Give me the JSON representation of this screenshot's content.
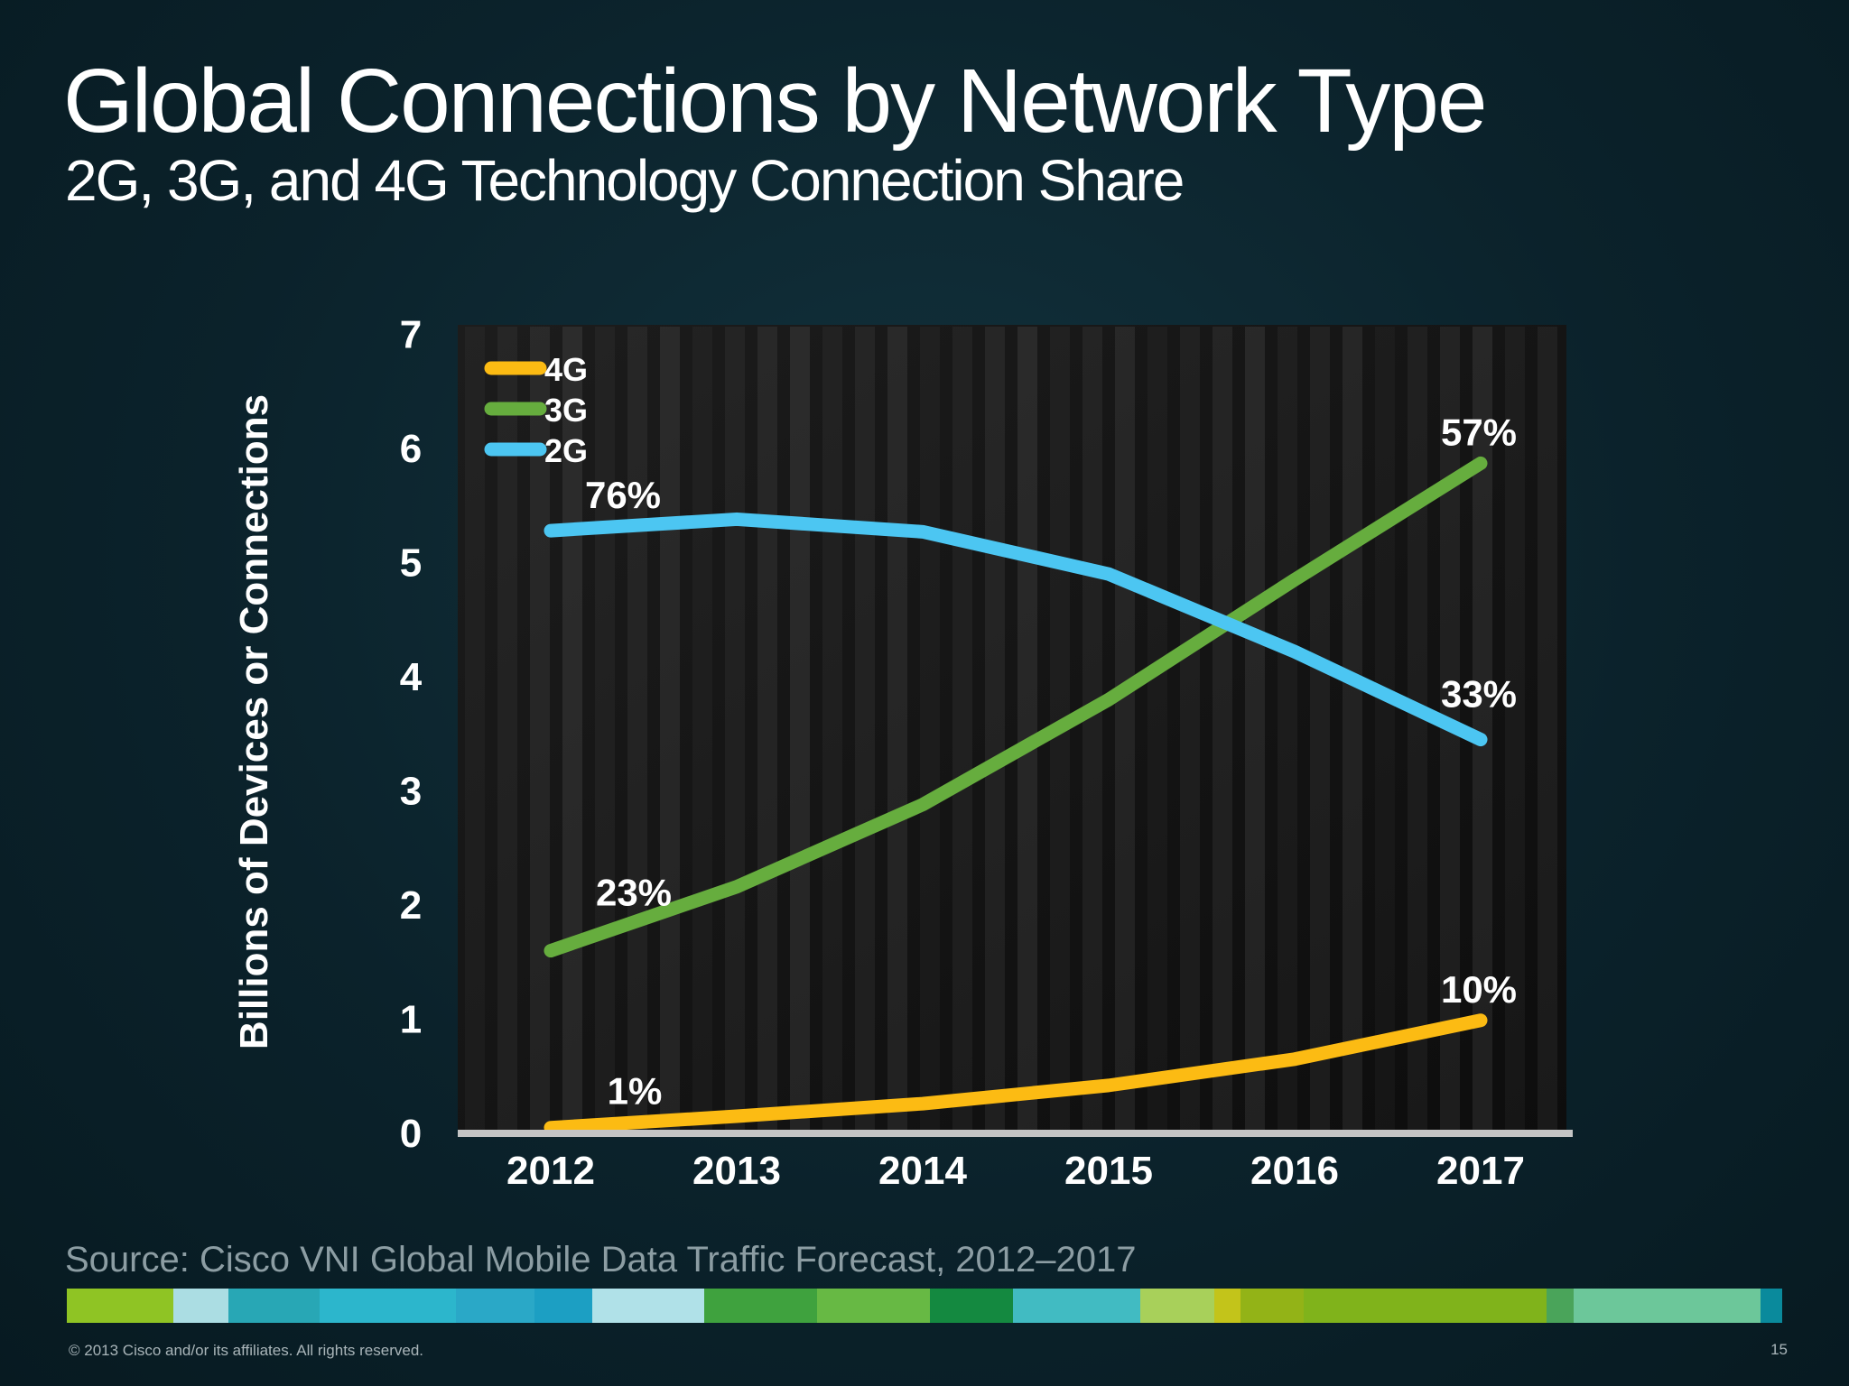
{
  "slide": {
    "title": "Global Connections by Network Type",
    "subtitle": "2G, 3G, and 4G Technology Connection Share",
    "source": "Source: Cisco VNI Global Mobile Data Traffic Forecast, 2012–2017",
    "copyright": "© 2013 Cisco and/or its affiliates. All rights reserved.",
    "page_number": "15"
  },
  "colors": {
    "4G": "#fcbb13",
    "3G": "#66ad3e",
    "2G": "#4cc6f2",
    "plot_background": "#151515",
    "baseline": "#c4c4c4"
  },
  "chart_data": {
    "type": "line",
    "title": "",
    "xlabel": "",
    "ylabel": "Billions of Devices or Connections",
    "x": [
      "2012",
      "2013",
      "2014",
      "2015",
      "2016",
      "2017"
    ],
    "ylim": [
      0,
      7
    ],
    "yticks": [
      "0",
      "1",
      "2",
      "3",
      "4",
      "5",
      "6",
      "7"
    ],
    "grid": false,
    "legend": "top-left",
    "series": [
      {
        "name": "4G",
        "values": [
          0.05,
          0.15,
          0.26,
          0.42,
          0.65,
          0.99
        ],
        "annotations": [
          {
            "index": 0,
            "text": "1%"
          },
          {
            "index": 5,
            "text": "10%"
          }
        ]
      },
      {
        "name": "3G",
        "values": [
          1.6,
          2.16,
          2.88,
          3.8,
          4.85,
          5.87
        ],
        "annotations": [
          {
            "index": 0,
            "text": "23%"
          },
          {
            "index": 5,
            "text": "57%"
          }
        ]
      },
      {
        "name": "2G",
        "values": [
          5.28,
          5.38,
          5.27,
          4.9,
          4.22,
          3.45
        ],
        "annotations": [
          {
            "index": 0,
            "text": "76%"
          },
          {
            "index": 5,
            "text": "33%"
          }
        ]
      }
    ]
  },
  "footer_colorbar": [
    "#8fc424",
    "#abdde3",
    "#28a7b5",
    "#2cb6cc",
    "#2aa8c7",
    "#1c9fc3",
    "#b0e1e8",
    "#3fa23e",
    "#67b944",
    "#148940",
    "#41bbc2",
    "#a8d05a",
    "#c3c41a",
    "#93b317",
    "#80b31b",
    "#4aa45a",
    "#6cc79a",
    "#0a8a9c"
  ]
}
